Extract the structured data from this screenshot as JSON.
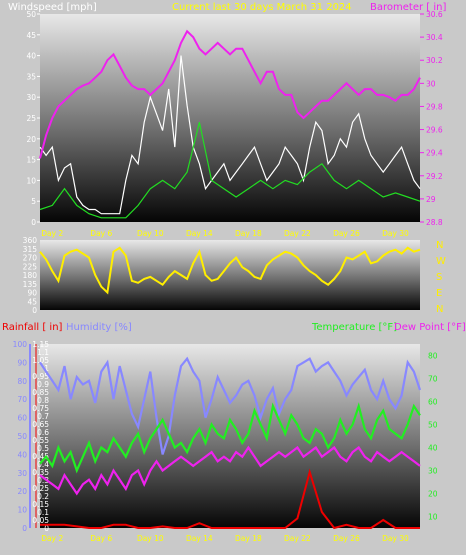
{
  "chart_data": [
    {
      "type": "line",
      "title": "Current last 30 days March 31 2024",
      "left_axis_label": "Windspeed [mph]",
      "right_axis_label": "Barometer [ in]",
      "left_ylim": [
        0,
        50
      ],
      "left_ticks": [
        "0",
        "5",
        "10",
        "15",
        "20",
        "25",
        "30",
        "35",
        "40",
        "45",
        "50"
      ],
      "right_ylim": [
        28.8,
        30.6
      ],
      "right_ticks": [
        "28.8",
        "29",
        "29.2",
        "29.4",
        "29.6",
        "29.8",
        "30",
        "30.2",
        "30.4",
        "30.6"
      ],
      "x_ticks": [
        "Day 2",
        "Day 6",
        "Day 10",
        "Day 14",
        "Day 18",
        "Day 22",
        "Day 26",
        "Day 30"
      ],
      "x_tick_days": [
        2,
        6,
        10,
        14,
        18,
        22,
        26,
        30
      ],
      "xlim": [
        1,
        32
      ],
      "series": [
        {
          "name": "Windspeed",
          "axis": "left",
          "color": "#ffffff",
          "x": [
            1,
            1.5,
            2,
            2.5,
            3,
            3.5,
            4,
            4.5,
            5,
            5.5,
            6,
            6.5,
            7,
            7.5,
            8,
            8.5,
            9,
            9.5,
            10,
            10.5,
            11,
            11.5,
            12,
            12.5,
            13,
            13.5,
            14,
            14.5,
            15,
            15.5,
            16,
            16.5,
            17,
            17.5,
            18,
            18.5,
            19,
            19.5,
            20,
            20.5,
            21,
            21.5,
            22,
            22.5,
            23,
            23.5,
            24,
            24.5,
            25,
            25.5,
            26,
            26.5,
            27,
            27.5,
            28,
            28.5,
            29,
            29.5,
            30,
            30.5,
            31,
            31.5,
            32
          ],
          "values": [
            18,
            16,
            18,
            10,
            13,
            14,
            6,
            4,
            3,
            3,
            2,
            2,
            2,
            2,
            10,
            16,
            14,
            24,
            30,
            26,
            22,
            32,
            18,
            40,
            28,
            18,
            14,
            8,
            10,
            12,
            14,
            10,
            12,
            14,
            16,
            18,
            14,
            10,
            12,
            14,
            18,
            16,
            14,
            10,
            18,
            24,
            22,
            14,
            16,
            20,
            18,
            24,
            26,
            20,
            16,
            14,
            12,
            14,
            16,
            18,
            14,
            10,
            8
          ]
        },
        {
          "name": "Gust",
          "axis": "left",
          "color": "#22dd22",
          "x": [
            1,
            2,
            3,
            4,
            5,
            6,
            7,
            8,
            9,
            10,
            11,
            12,
            13,
            14,
            15,
            16,
            17,
            18,
            19,
            20,
            21,
            22,
            23,
            24,
            25,
            26,
            27,
            28,
            29,
            30,
            31,
            32
          ],
          "values": [
            3,
            4,
            8,
            4,
            2,
            1,
            1,
            1,
            4,
            8,
            10,
            8,
            12,
            24,
            10,
            8,
            6,
            8,
            10,
            8,
            10,
            9,
            12,
            14,
            10,
            8,
            10,
            8,
            6,
            7,
            6,
            5
          ]
        },
        {
          "name": "Barometer",
          "axis": "right",
          "color": "#ee22ee",
          "x": [
            1,
            1.5,
            2,
            2.5,
            3,
            3.5,
            4,
            4.5,
            5,
            5.5,
            6,
            6.5,
            7,
            7.5,
            8,
            8.5,
            9,
            9.5,
            10,
            10.5,
            11,
            11.5,
            12,
            12.5,
            13,
            13.5,
            14,
            14.5,
            15,
            15.5,
            16,
            16.5,
            17,
            17.5,
            18,
            18.5,
            19,
            19.5,
            20,
            20.5,
            21,
            21.5,
            22,
            22.5,
            23,
            23.5,
            24,
            24.5,
            25,
            25.5,
            26,
            26.5,
            27,
            27.5,
            28,
            28.5,
            29,
            29.5,
            30,
            30.5,
            31,
            31.5,
            32
          ],
          "values": [
            29.35,
            29.55,
            29.7,
            29.8,
            29.85,
            29.9,
            29.95,
            29.98,
            30.0,
            30.05,
            30.1,
            30.2,
            30.25,
            30.15,
            30.05,
            29.98,
            29.95,
            29.95,
            29.9,
            29.95,
            30.0,
            30.1,
            30.2,
            30.35,
            30.45,
            30.4,
            30.3,
            30.25,
            30.3,
            30.35,
            30.3,
            30.25,
            30.3,
            30.3,
            30.2,
            30.1,
            30.0,
            30.1,
            30.1,
            29.95,
            29.9,
            29.9,
            29.75,
            29.7,
            29.75,
            29.8,
            29.85,
            29.85,
            29.9,
            29.95,
            30.0,
            29.95,
            29.9,
            29.95,
            29.95,
            29.9,
            29.9,
            29.88,
            29.85,
            29.9,
            29.9,
            29.95,
            30.05
          ]
        }
      ]
    },
    {
      "type": "line",
      "title": "",
      "left_ticks": [
        "0",
        "45",
        "90",
        "135",
        "180",
        "225",
        "270",
        "315",
        "360"
      ],
      "ylim": [
        0,
        360
      ],
      "right_labels": [
        "N",
        "W",
        "S",
        "E",
        "N"
      ],
      "x_ticks": [
        "Day 2",
        "Day 6",
        "Day 10",
        "Day 14",
        "Day 18",
        "Day 22",
        "Day 26",
        "Day 30"
      ],
      "x_tick_days": [
        2,
        6,
        10,
        14,
        18,
        22,
        26,
        30
      ],
      "xlim": [
        1,
        32
      ],
      "series": [
        {
          "name": "Wind Direction",
          "color": "#ffee00",
          "x": [
            1,
            1.5,
            2,
            2.5,
            3,
            3.5,
            4,
            4.5,
            5,
            5.5,
            6,
            6.5,
            7,
            7.5,
            8,
            8.5,
            9,
            9.5,
            10,
            10.5,
            11,
            11.5,
            12,
            12.5,
            13,
            13.5,
            14,
            14.5,
            15,
            15.5,
            16,
            16.5,
            17,
            17.5,
            18,
            18.5,
            19,
            19.5,
            20,
            20.5,
            21,
            21.5,
            22,
            22.5,
            23,
            23.5,
            24,
            24.5,
            25,
            25.5,
            26,
            26.5,
            27,
            27.5,
            28,
            28.5,
            29,
            29.5,
            30,
            30.5,
            31,
            31.5,
            32
          ],
          "values": [
            300,
            260,
            200,
            150,
            280,
            300,
            310,
            290,
            270,
            180,
            120,
            90,
            300,
            320,
            280,
            150,
            140,
            160,
            170,
            150,
            130,
            170,
            200,
            180,
            160,
            240,
            300,
            180,
            150,
            160,
            200,
            240,
            270,
            220,
            200,
            170,
            160,
            230,
            260,
            280,
            300,
            290,
            270,
            230,
            200,
            180,
            150,
            130,
            160,
            200,
            270,
            260,
            280,
            300,
            240,
            250,
            280,
            300,
            310,
            290,
            320,
            300,
            310
          ]
        }
      ]
    },
    {
      "type": "line",
      "title": "",
      "rainfall_label": "Rainfall [ in]",
      "humidity_label": "Humidity [%]",
      "temperature_label": "Temperature [°F]",
      "dewpoint_label": "Dew Point [°F]",
      "rain_ylim": [
        0,
        1.15
      ],
      "rain_ticks": [
        "0",
        "0.05",
        "0.1",
        "0.15",
        "0.2",
        "0.25",
        "0.3",
        "0.35",
        "0.4",
        "0.45",
        "0.5",
        "0.55",
        "0.6",
        "0.65",
        "0.7",
        "0.75",
        "0.8",
        "0.85",
        "0.9",
        "0.95",
        "1",
        "1.05",
        "1.1",
        "1.15"
      ],
      "humidity_ylim": [
        0,
        100
      ],
      "humidity_ticks": [
        "0",
        "10",
        "20",
        "30",
        "40",
        "50",
        "60",
        "70",
        "80",
        "90",
        "100"
      ],
      "temp_ylim": [
        5,
        85
      ],
      "temp_ticks": [
        "10",
        "20",
        "30",
        "40",
        "50",
        "60",
        "70",
        "80"
      ],
      "x_ticks": [
        "Day 2",
        "Day 6",
        "Day 10",
        "Day 14",
        "Day 18",
        "Day 22",
        "Day 26",
        "Day 30"
      ],
      "x_tick_days": [
        2,
        6,
        10,
        14,
        18,
        22,
        26,
        30
      ],
      "xlim": [
        1,
        32
      ],
      "series": [
        {
          "name": "Humidity",
          "axis": "humidity",
          "color": "#8888ff",
          "x": [
            1,
            1.5,
            2,
            2.5,
            3,
            3.5,
            4,
            4.5,
            5,
            5.5,
            6,
            6.5,
            7,
            7.5,
            8,
            8.5,
            9,
            9.5,
            10,
            10.5,
            11,
            11.5,
            12,
            12.5,
            13,
            13.5,
            14,
            14.5,
            15,
            15.5,
            16,
            16.5,
            17,
            17.5,
            18,
            18.5,
            19,
            19.5,
            20,
            20.5,
            21,
            21.5,
            22,
            22.5,
            23,
            23.5,
            24,
            24.5,
            25,
            25.5,
            26,
            26.5,
            27,
            27.5,
            28,
            28.5,
            29,
            29.5,
            30,
            30.5,
            31,
            31.5,
            32
          ],
          "values": [
            90,
            85,
            80,
            75,
            88,
            70,
            82,
            78,
            80,
            68,
            85,
            90,
            70,
            88,
            75,
            62,
            55,
            70,
            85,
            60,
            40,
            50,
            72,
            88,
            92,
            85,
            80,
            60,
            70,
            82,
            75,
            68,
            72,
            78,
            80,
            72,
            60,
            70,
            76,
            62,
            70,
            75,
            88,
            90,
            92,
            85,
            88,
            90,
            85,
            80,
            72,
            78,
            82,
            86,
            75,
            70,
            80,
            70,
            65,
            72,
            90,
            85,
            75
          ]
        },
        {
          "name": "Temperature",
          "axis": "temp",
          "color": "#22ee22",
          "x": [
            1,
            1.5,
            2,
            2.5,
            3,
            3.5,
            4,
            4.5,
            5,
            5.5,
            6,
            6.5,
            7,
            7.5,
            8,
            8.5,
            9,
            9.5,
            10,
            10.5,
            11,
            11.5,
            12,
            12.5,
            13,
            13.5,
            14,
            14.5,
            15,
            15.5,
            16,
            16.5,
            17,
            17.5,
            18,
            18.5,
            19,
            19.5,
            20,
            20.5,
            21,
            21.5,
            22,
            22.5,
            23,
            23.5,
            24,
            24.5,
            25,
            25.5,
            26,
            26.5,
            27,
            27.5,
            28,
            28.5,
            29,
            29.5,
            30,
            30.5,
            31,
            31.5,
            32
          ],
          "values": [
            33,
            36,
            32,
            40,
            34,
            38,
            30,
            36,
            42,
            34,
            40,
            38,
            44,
            40,
            36,
            42,
            46,
            38,
            44,
            48,
            52,
            46,
            40,
            42,
            38,
            44,
            48,
            42,
            50,
            46,
            44,
            52,
            48,
            42,
            46,
            56,
            50,
            44,
            58,
            52,
            46,
            54,
            50,
            44,
            42,
            48,
            46,
            40,
            44,
            52,
            46,
            50,
            58,
            48,
            44,
            52,
            56,
            48,
            46,
            44,
            50,
            58,
            54
          ]
        },
        {
          "name": "Dew Point",
          "axis": "temp",
          "color": "#ee22ee",
          "x": [
            1,
            1.5,
            2,
            2.5,
            3,
            3.5,
            4,
            4.5,
            5,
            5.5,
            6,
            6.5,
            7,
            7.5,
            8,
            8.5,
            9,
            9.5,
            10,
            10.5,
            11,
            11.5,
            12,
            12.5,
            13,
            13.5,
            14,
            14.5,
            15,
            15.5,
            16,
            16.5,
            17,
            17.5,
            18,
            18.5,
            19,
            19.5,
            20,
            20.5,
            21,
            21.5,
            22,
            22.5,
            23,
            23.5,
            24,
            24.5,
            25,
            25.5,
            26,
            26.5,
            27,
            27.5,
            28,
            28.5,
            29,
            29.5,
            30,
            30.5,
            31,
            31.5,
            32
          ],
          "values": [
            28,
            26,
            24,
            22,
            28,
            24,
            20,
            24,
            26,
            22,
            28,
            24,
            30,
            26,
            22,
            28,
            30,
            24,
            30,
            34,
            30,
            32,
            34,
            36,
            34,
            32,
            34,
            36,
            38,
            34,
            36,
            34,
            38,
            36,
            40,
            36,
            32,
            34,
            36,
            38,
            36,
            38,
            40,
            36,
            38,
            40,
            36,
            38,
            40,
            36,
            34,
            38,
            40,
            36,
            34,
            38,
            36,
            34,
            36,
            38,
            36,
            34,
            32
          ]
        },
        {
          "name": "Rainfall",
          "axis": "rain",
          "color": "#ee0000",
          "x": [
            1,
            2,
            3,
            4,
            5,
            6,
            7,
            8,
            9,
            10,
            11,
            12,
            13,
            14,
            15,
            16,
            17,
            18,
            19,
            20,
            21,
            22,
            23,
            24,
            25,
            26,
            27,
            28,
            29,
            30,
            31,
            32
          ],
          "values": [
            0.02,
            0.02,
            0.02,
            0.01,
            0,
            0,
            0.02,
            0.02,
            0,
            0,
            0.01,
            0,
            0,
            0.03,
            0,
            0,
            0,
            0,
            0,
            0,
            0,
            0.06,
            0.35,
            0.1,
            0,
            0.02,
            0,
            0,
            0.05,
            0,
            0,
            0
          ]
        }
      ]
    }
  ],
  "colors": {
    "windspeed": "#ffffff",
    "gust": "#22dd22",
    "barometer": "#ee22ee",
    "direction": "#ffee00",
    "humidity": "#8888ff",
    "temperature": "#22ee22",
    "dewpoint": "#ee22ee",
    "rainfall": "#ee0000",
    "title": "#ffff00"
  }
}
